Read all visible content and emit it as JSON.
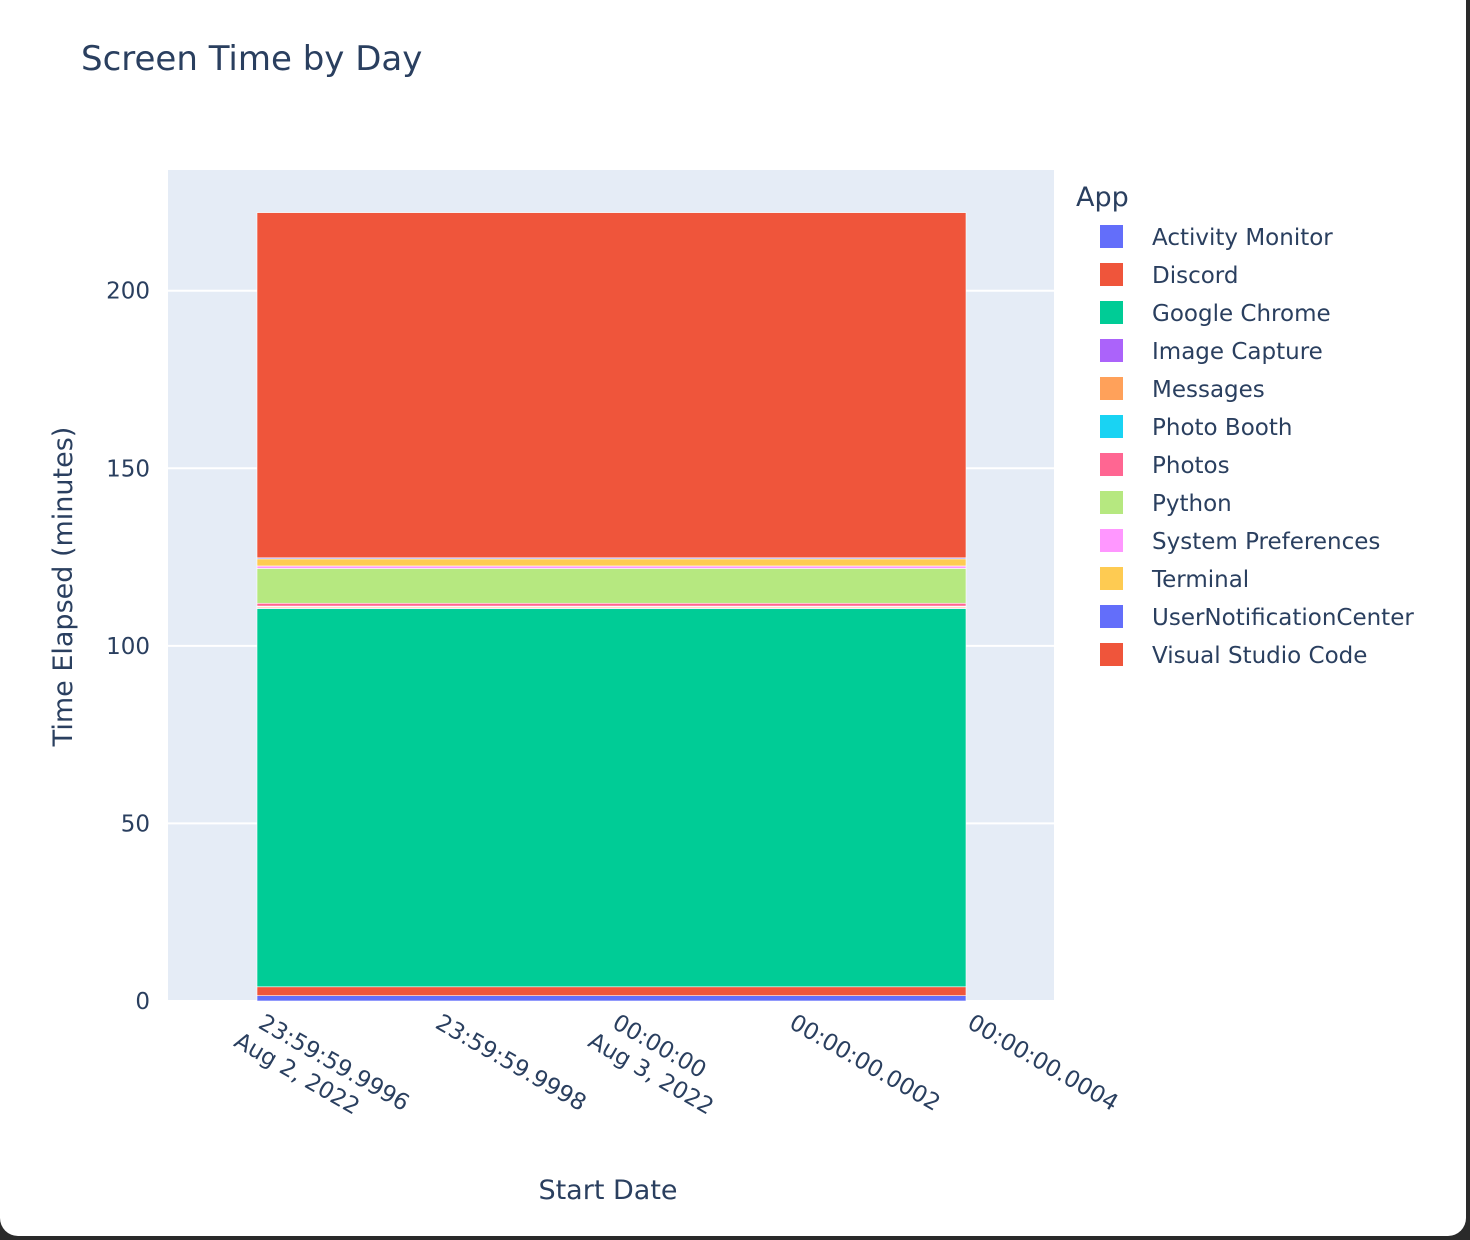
{
  "chart_data": {
    "type": "bar",
    "barmode": "stack",
    "title": "Screen Time by Day",
    "xlabel": "Start Date",
    "ylabel": "Time Elapsed (minutes)",
    "legend_title": "App",
    "legend_placement": "right",
    "grid": true,
    "plot_background": "#e5ecf6",
    "x_tick_labels": [
      [
        "23:59:59.9996",
        "Aug 2, 2022"
      ],
      [
        "23:59:59.9998"
      ],
      [
        "00:00:00",
        "Aug 3, 2022"
      ],
      [
        "00:00:00.0002"
      ],
      [
        "00:00:00.0004"
      ]
    ],
    "y_ticks": [
      0,
      50,
      100,
      150,
      200
    ],
    "ylim": [
      0,
      234
    ],
    "categories": [
      "Aug 3, 2022"
    ],
    "series": [
      {
        "name": "Activity Monitor",
        "color": "#636efa",
        "values": [
          1.5
        ]
      },
      {
        "name": "Discord",
        "color": "#ef553b",
        "values": [
          2.5
        ]
      },
      {
        "name": "Google Chrome",
        "color": "#00cc96",
        "values": [
          106.5
        ]
      },
      {
        "name": "Image Capture",
        "color": "#ab63fa",
        "values": [
          0.2
        ]
      },
      {
        "name": "Messages",
        "color": "#ffa15a",
        "values": [
          0.3
        ]
      },
      {
        "name": "Photo Booth",
        "color": "#19d3f3",
        "values": [
          0.2
        ]
      },
      {
        "name": "Photos",
        "color": "#ff6692",
        "values": [
          0.8
        ]
      },
      {
        "name": "Python",
        "color": "#b6e880",
        "values": [
          9.8
        ]
      },
      {
        "name": "System Preferences",
        "color": "#ff97ff",
        "values": [
          0.7
        ]
      },
      {
        "name": "Terminal",
        "color": "#fecb52",
        "values": [
          2.0
        ]
      },
      {
        "name": "UserNotificationCenter",
        "color": "#636efa",
        "values": [
          0.3
        ]
      },
      {
        "name": "Visual Studio Code",
        "color": "#ef553b",
        "values": [
          97.2
        ]
      }
    ]
  }
}
